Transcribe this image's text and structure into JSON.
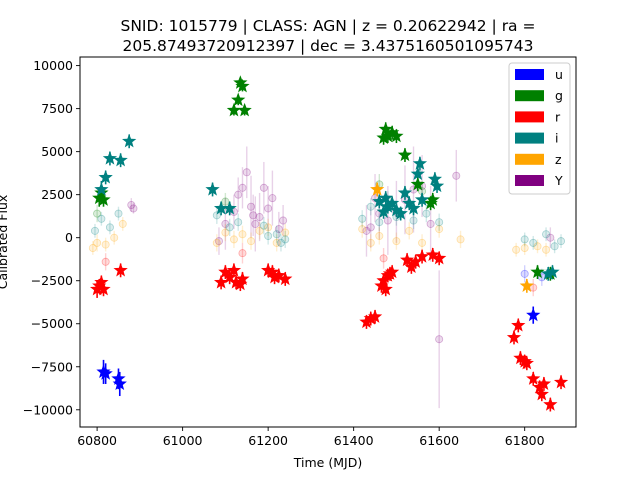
{
  "chart_data": {
    "type": "scatter",
    "title_lines": [
      "SNID: 1015779 | CLASS: AGN | z = 0.20622942 | ra =",
      "205.87493720912397 | dec = 3.4375160501095743"
    ],
    "xlabel": "Time (MJD)",
    "ylabel": "Calibrated Flux",
    "xlim": [
      60760,
      61920
    ],
    "ylim": [
      -11000,
      10500
    ],
    "xticks": [
      60800,
      61000,
      61200,
      61400,
      61600,
      61800
    ],
    "yticks": [
      -10000,
      -7500,
      -5000,
      -2500,
      0,
      2500,
      5000,
      7500,
      10000
    ],
    "xtick_labels": [
      "60800",
      "61000",
      "61200",
      "61400",
      "61600",
      "61800"
    ],
    "ytick_labels": [
      "−10000",
      "−7500",
      "−5000",
      "−2500",
      "0",
      "2500",
      "5000",
      "7500",
      "10000"
    ],
    "legend_position": "top-right",
    "series": [
      {
        "name": "u",
        "color": "#0000ff",
        "points": [
          [
            60815,
            -7800,
            700
          ],
          [
            60820,
            -7900,
            600
          ],
          [
            60850,
            -8200,
            600
          ],
          [
            60853,
            -8500,
            700
          ],
          [
            61820,
            -4500,
            500
          ]
        ]
      },
      {
        "name": "g",
        "color": "#008000",
        "points": [
          [
            60805,
            2300,
            500
          ],
          [
            60810,
            2600,
            400
          ],
          [
            60815,
            2200,
            400
          ],
          [
            61120,
            7400,
            300
          ],
          [
            61130,
            8000,
            300
          ],
          [
            61135,
            9000,
            300
          ],
          [
            61140,
            8800,
            300
          ],
          [
            61145,
            7400,
            300
          ],
          [
            61470,
            5800,
            400
          ],
          [
            61475,
            6300,
            400
          ],
          [
            61480,
            5900,
            400
          ],
          [
            61490,
            6100,
            400
          ],
          [
            61500,
            5900,
            400
          ],
          [
            61520,
            4800,
            400
          ],
          [
            61550,
            3100,
            400
          ],
          [
            61580,
            2000,
            400
          ],
          [
            61585,
            2200,
            400
          ],
          [
            61830,
            -2000,
            400
          ],
          [
            61860,
            -2100,
            400
          ]
        ]
      },
      {
        "name": "r",
        "color": "#ff0000",
        "points": [
          [
            60800,
            -3000,
            500
          ],
          [
            60805,
            -2800,
            400
          ],
          [
            60810,
            -2600,
            400
          ],
          [
            60815,
            -3000,
            400
          ],
          [
            60855,
            -1900,
            400
          ],
          [
            61090,
            -2600,
            400
          ],
          [
            61100,
            -2000,
            400
          ],
          [
            61110,
            -2300,
            400
          ],
          [
            61120,
            -1900,
            400
          ],
          [
            61125,
            -2600,
            400
          ],
          [
            61135,
            -2700,
            400
          ],
          [
            61140,
            -2400,
            400
          ],
          [
            61200,
            -1900,
            400
          ],
          [
            61210,
            -2000,
            400
          ],
          [
            61215,
            -2300,
            400
          ],
          [
            61225,
            -2200,
            400
          ],
          [
            61240,
            -2400,
            400
          ],
          [
            61430,
            -4900,
            400
          ],
          [
            61440,
            -4700,
            400
          ],
          [
            61450,
            -4600,
            400
          ],
          [
            61465,
            -2800,
            400
          ],
          [
            61470,
            -2500,
            400
          ],
          [
            61475,
            -3000,
            400
          ],
          [
            61480,
            -2200,
            400
          ],
          [
            61485,
            -2100,
            400
          ],
          [
            61490,
            -2000,
            400
          ],
          [
            61525,
            -1300,
            400
          ],
          [
            61535,
            -1700,
            400
          ],
          [
            61545,
            -1400,
            400
          ],
          [
            61560,
            -1100,
            400
          ],
          [
            61585,
            -1000,
            400
          ],
          [
            61600,
            -1200,
            400
          ],
          [
            61775,
            -5800,
            400
          ],
          [
            61785,
            -5100,
            400
          ],
          [
            61790,
            -7000,
            400
          ],
          [
            61800,
            -7200,
            400
          ],
          [
            61805,
            -7300,
            400
          ],
          [
            61820,
            -8200,
            400
          ],
          [
            61835,
            -8700,
            400
          ],
          [
            61840,
            -9100,
            400
          ],
          [
            61845,
            -8500,
            400
          ],
          [
            61860,
            -9700,
            400
          ],
          [
            61885,
            -8400,
            400
          ]
        ]
      },
      {
        "name": "i",
        "color": "#008080",
        "points": [
          [
            60810,
            2800,
            500
          ],
          [
            60820,
            3500,
            400
          ],
          [
            60830,
            4600,
            400
          ],
          [
            60855,
            4500,
            400
          ],
          [
            60875,
            5600,
            400
          ],
          [
            61070,
            2800,
            400
          ],
          [
            61090,
            1700,
            400
          ],
          [
            61110,
            1700,
            400
          ],
          [
            61460,
            2100,
            400
          ],
          [
            61470,
            1500,
            400
          ],
          [
            61475,
            2300,
            400
          ],
          [
            61480,
            1800,
            400
          ],
          [
            61490,
            2000,
            400
          ],
          [
            61500,
            1600,
            400
          ],
          [
            61510,
            1400,
            400
          ],
          [
            61520,
            2600,
            400
          ],
          [
            61530,
            2000,
            400
          ],
          [
            61540,
            1700,
            400
          ],
          [
            61550,
            3700,
            400
          ],
          [
            61555,
            4300,
            400
          ],
          [
            61560,
            2200,
            400
          ],
          [
            61590,
            3400,
            400
          ],
          [
            61595,
            3000,
            400
          ],
          [
            61855,
            -2100,
            400
          ],
          [
            61865,
            -2000,
            400
          ]
        ]
      },
      {
        "name": "z",
        "color": "#ffa500",
        "points": [
          [
            61455,
            2800,
            400
          ],
          [
            61805,
            -2800,
            400
          ]
        ]
      },
      {
        "name": "Y",
        "color": "#800080",
        "points": []
      }
    ],
    "background_points": [
      {
        "color": "#800080",
        "points": [
          [
            60880,
            1900,
            400
          ],
          [
            60885,
            1700,
            300
          ],
          [
            61085,
            -200,
            800
          ],
          [
            61100,
            800,
            1500
          ],
          [
            61120,
            1500,
            1000
          ],
          [
            61130,
            2500,
            1000
          ],
          [
            61140,
            2900,
            1200
          ],
          [
            61150,
            3800,
            1500
          ],
          [
            61160,
            1800,
            1800
          ],
          [
            61165,
            1300,
            1200
          ],
          [
            61170,
            800,
            1600
          ],
          [
            61180,
            1200,
            1400
          ],
          [
            61190,
            2900,
            1500
          ],
          [
            61200,
            1700,
            1300
          ],
          [
            61210,
            2300,
            1600
          ],
          [
            61225,
            500,
            1000
          ],
          [
            61235,
            1000,
            900
          ],
          [
            61430,
            400,
            1500
          ],
          [
            61440,
            600,
            1200
          ],
          [
            61450,
            2300,
            1400
          ],
          [
            61460,
            1400,
            1500
          ],
          [
            61480,
            1000,
            2000
          ],
          [
            61500,
            1500,
            1800
          ],
          [
            61520,
            2200,
            2000
          ],
          [
            61540,
            2800,
            2500
          ],
          [
            61560,
            3000,
            1800
          ],
          [
            61580,
            800,
            2200
          ],
          [
            61600,
            -5900,
            4000
          ],
          [
            61640,
            3600,
            1500
          ],
          [
            61860,
            0,
            600
          ]
        ]
      },
      {
        "color": "#ffa500",
        "points": [
          [
            60790,
            -600,
            400
          ],
          [
            60800,
            -300,
            500
          ],
          [
            60820,
            -400,
            400
          ],
          [
            60840,
            0,
            400
          ],
          [
            60860,
            800,
            400
          ],
          [
            61080,
            -300,
            500
          ],
          [
            61100,
            300,
            500
          ],
          [
            61120,
            -100,
            500
          ],
          [
            61140,
            200,
            500
          ],
          [
            61160,
            -200,
            500
          ],
          [
            61180,
            400,
            500
          ],
          [
            61200,
            600,
            500
          ],
          [
            61220,
            -300,
            500
          ],
          [
            61240,
            300,
            500
          ],
          [
            61420,
            500,
            500
          ],
          [
            61440,
            -300,
            500
          ],
          [
            61460,
            100,
            500
          ],
          [
            61500,
            -200,
            500
          ],
          [
            61530,
            400,
            500
          ],
          [
            61560,
            -300,
            500
          ],
          [
            61600,
            500,
            500
          ],
          [
            61650,
            -100,
            500
          ],
          [
            61780,
            -700,
            400
          ],
          [
            61800,
            -600,
            400
          ],
          [
            61830,
            -500,
            400
          ],
          [
            61850,
            -700,
            400
          ]
        ]
      },
      {
        "color": "#008080",
        "points": [
          [
            60795,
            400,
            400
          ],
          [
            60810,
            1100,
            400
          ],
          [
            60830,
            600,
            400
          ],
          [
            60850,
            1400,
            400
          ],
          [
            61080,
            1300,
            500
          ],
          [
            61110,
            600,
            500
          ],
          [
            61130,
            900,
            500
          ],
          [
            61190,
            700,
            500
          ],
          [
            61200,
            100,
            500
          ],
          [
            61220,
            200,
            500
          ],
          [
            61230,
            -300,
            500
          ],
          [
            61240,
            -100,
            500
          ],
          [
            61420,
            1100,
            500
          ],
          [
            61440,
            1800,
            500
          ],
          [
            61460,
            900,
            500
          ],
          [
            61480,
            2200,
            500
          ],
          [
            61500,
            1200,
            500
          ],
          [
            61540,
            1000,
            500
          ],
          [
            61570,
            1400,
            500
          ],
          [
            61600,
            900,
            500
          ],
          [
            61800,
            -100,
            400
          ],
          [
            61820,
            -300,
            400
          ],
          [
            61850,
            200,
            400
          ],
          [
            61870,
            -500,
            400
          ],
          [
            61885,
            -200,
            400
          ]
        ]
      },
      {
        "color": "#0000ff",
        "points": [
          [
            61800,
            -2100,
            500
          ],
          [
            61840,
            -2300,
            500
          ]
        ]
      },
      {
        "color": "#008000",
        "points": [
          [
            60800,
            1400,
            500
          ],
          [
            61100,
            2100,
            500
          ],
          [
            61460,
            3100,
            600
          ],
          [
            61560,
            2700,
            600
          ]
        ]
      },
      {
        "color": "#ff0000",
        "points": [
          [
            60820,
            -1400,
            500
          ],
          [
            61140,
            -900,
            600
          ],
          [
            61470,
            -1200,
            600
          ],
          [
            61820,
            -2900,
            500
          ]
        ]
      }
    ]
  }
}
